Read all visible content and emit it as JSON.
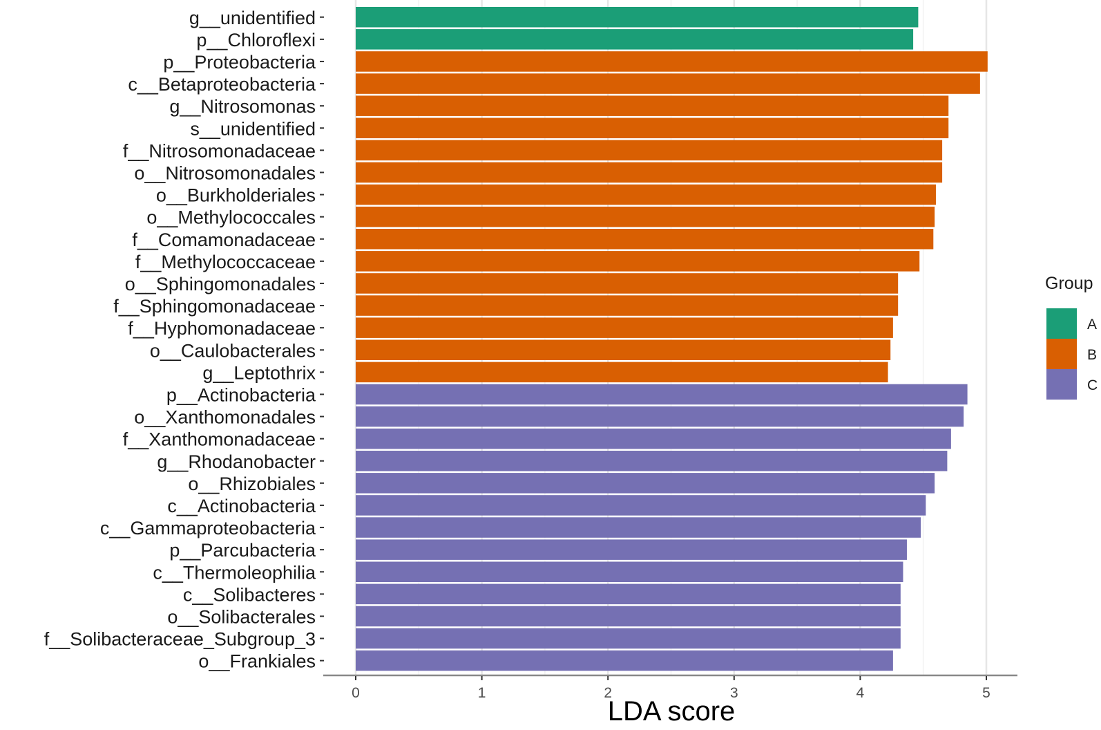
{
  "chart_data": {
    "type": "bar",
    "orientation": "horizontal",
    "xlabel": "LDA score",
    "ylabel": "",
    "xlim": [
      -0.25,
      5.25
    ],
    "xticks": [
      0,
      1,
      2,
      3,
      4,
      5
    ],
    "grid": "vertical major",
    "legend": {
      "title": "Group",
      "position": "right",
      "entries": [
        {
          "name": "A",
          "color": "#1b9e77"
        },
        {
          "name": "B",
          "color": "#d95f02"
        },
        {
          "name": "C",
          "color": "#7570b3"
        }
      ]
    },
    "bars": [
      {
        "label": "g__unidentified",
        "group": "A",
        "value": 4.46
      },
      {
        "label": "p__Chloroflexi",
        "group": "A",
        "value": 4.42
      },
      {
        "label": "p__Proteobacteria",
        "group": "B",
        "value": 5.01
      },
      {
        "label": "c__Betaproteobacteria",
        "group": "B",
        "value": 4.95
      },
      {
        "label": "g__Nitrosomonas",
        "group": "B",
        "value": 4.7
      },
      {
        "label": "s__unidentified",
        "group": "B",
        "value": 4.7
      },
      {
        "label": "f__Nitrosomonadaceae",
        "group": "B",
        "value": 4.65
      },
      {
        "label": "o__Nitrosomonadales",
        "group": "B",
        "value": 4.65
      },
      {
        "label": "o__Burkholderiales",
        "group": "B",
        "value": 4.6
      },
      {
        "label": "o__Methylococcales",
        "group": "B",
        "value": 4.59
      },
      {
        "label": "f__Comamonadaceae",
        "group": "B",
        "value": 4.58
      },
      {
        "label": "f__Methylococcaceae",
        "group": "B",
        "value": 4.47
      },
      {
        "label": "o__Sphingomonadales",
        "group": "B",
        "value": 4.3
      },
      {
        "label": "f__Sphingomonadaceae",
        "group": "B",
        "value": 4.3
      },
      {
        "label": "f__Hyphomonadaceae",
        "group": "B",
        "value": 4.26
      },
      {
        "label": "o__Caulobacterales",
        "group": "B",
        "value": 4.24
      },
      {
        "label": "g__Leptothrix",
        "group": "B",
        "value": 4.22
      },
      {
        "label": "p__Actinobacteria",
        "group": "C",
        "value": 4.85
      },
      {
        "label": "o__Xanthomonadales",
        "group": "C",
        "value": 4.82
      },
      {
        "label": "f__Xanthomonadaceae",
        "group": "C",
        "value": 4.72
      },
      {
        "label": "g__Rhodanobacter",
        "group": "C",
        "value": 4.69
      },
      {
        "label": "o__Rhizobiales",
        "group": "C",
        "value": 4.59
      },
      {
        "label": "c__Actinobacteria",
        "group": "C",
        "value": 4.52
      },
      {
        "label": "c__Gammaproteobacteria",
        "group": "C",
        "value": 4.48
      },
      {
        "label": "p__Parcubacteria",
        "group": "C",
        "value": 4.37
      },
      {
        "label": "c__Thermoleophilia",
        "group": "C",
        "value": 4.34
      },
      {
        "label": "c__Solibacteres",
        "group": "C",
        "value": 4.32
      },
      {
        "label": "o__Solibacterales",
        "group": "C",
        "value": 4.32
      },
      {
        "label": "f__Solibacteraceae_Subgroup_3",
        "group": "C",
        "value": 4.32
      },
      {
        "label": "o__Frankiales",
        "group": "C",
        "value": 4.26
      }
    ]
  }
}
